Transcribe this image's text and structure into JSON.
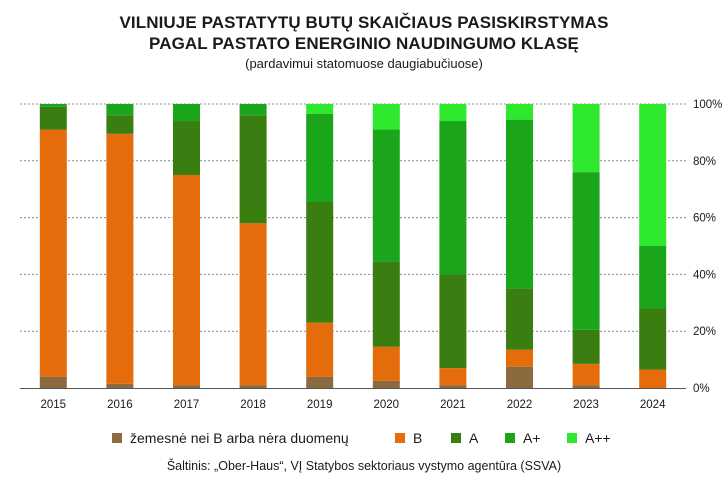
{
  "title_line1": "VILNIUJE PASTATYTŲ BUTŲ SKAIČIAUS PASISKIRSTYMAS",
  "title_line2": "PAGAL PASTATO ENERGINIO NAUDINGUMO KLASĘ",
  "subtitle": "(pardavimui statomuose daugiabučiuose)",
  "source": "Šaltinis: „Ober-Haus“, VĮ Statybos sektoriaus vystymo agentūra (SSVA)",
  "chart_data": {
    "type": "bar",
    "stacked": true,
    "title": "VILNIUJE PASTATYTŲ BUTŲ SKAIČIAUS PASISKIRSTYMAS PAGAL PASTATO ENERGINIO NAUDINGUMO KLASĘ",
    "subtitle": "(pardavimui statomuose daugiabučiuose)",
    "categories": [
      "2015",
      "2016",
      "2017",
      "2018",
      "2019",
      "2020",
      "2021",
      "2022",
      "2023",
      "2024"
    ],
    "y_ticks": [
      "0%",
      "20%",
      "40%",
      "60%",
      "80%",
      "100%"
    ],
    "ylim": [
      0,
      100
    ],
    "y_axis_side": "right",
    "grid": true,
    "legend_position": "bottom",
    "series": [
      {
        "name": "žemesnė nei B arba nėra duomenų",
        "color": "#8c6a3f",
        "values": [
          4,
          1.5,
          1,
          1,
          4,
          2.5,
          1,
          7.5,
          1,
          0
        ]
      },
      {
        "name": "B",
        "color": "#e46c0a",
        "values": [
          87,
          88,
          74,
          57,
          19,
          12,
          6,
          6,
          7.5,
          6.5
        ]
      },
      {
        "name": "A",
        "color": "#3a7d10",
        "values": [
          8,
          6.5,
          19,
          38,
          42.5,
          30,
          33,
          21.5,
          12,
          21.5
        ]
      },
      {
        "name": "A+",
        "color": "#1aa51a",
        "values": [
          1,
          4,
          6,
          4,
          31,
          46.5,
          54,
          59.5,
          55.5,
          22
        ]
      },
      {
        "name": "A++",
        "color": "#2ee82e",
        "values": [
          0,
          0,
          0,
          0,
          3.5,
          9,
          6,
          5.5,
          24,
          50
        ]
      }
    ]
  }
}
